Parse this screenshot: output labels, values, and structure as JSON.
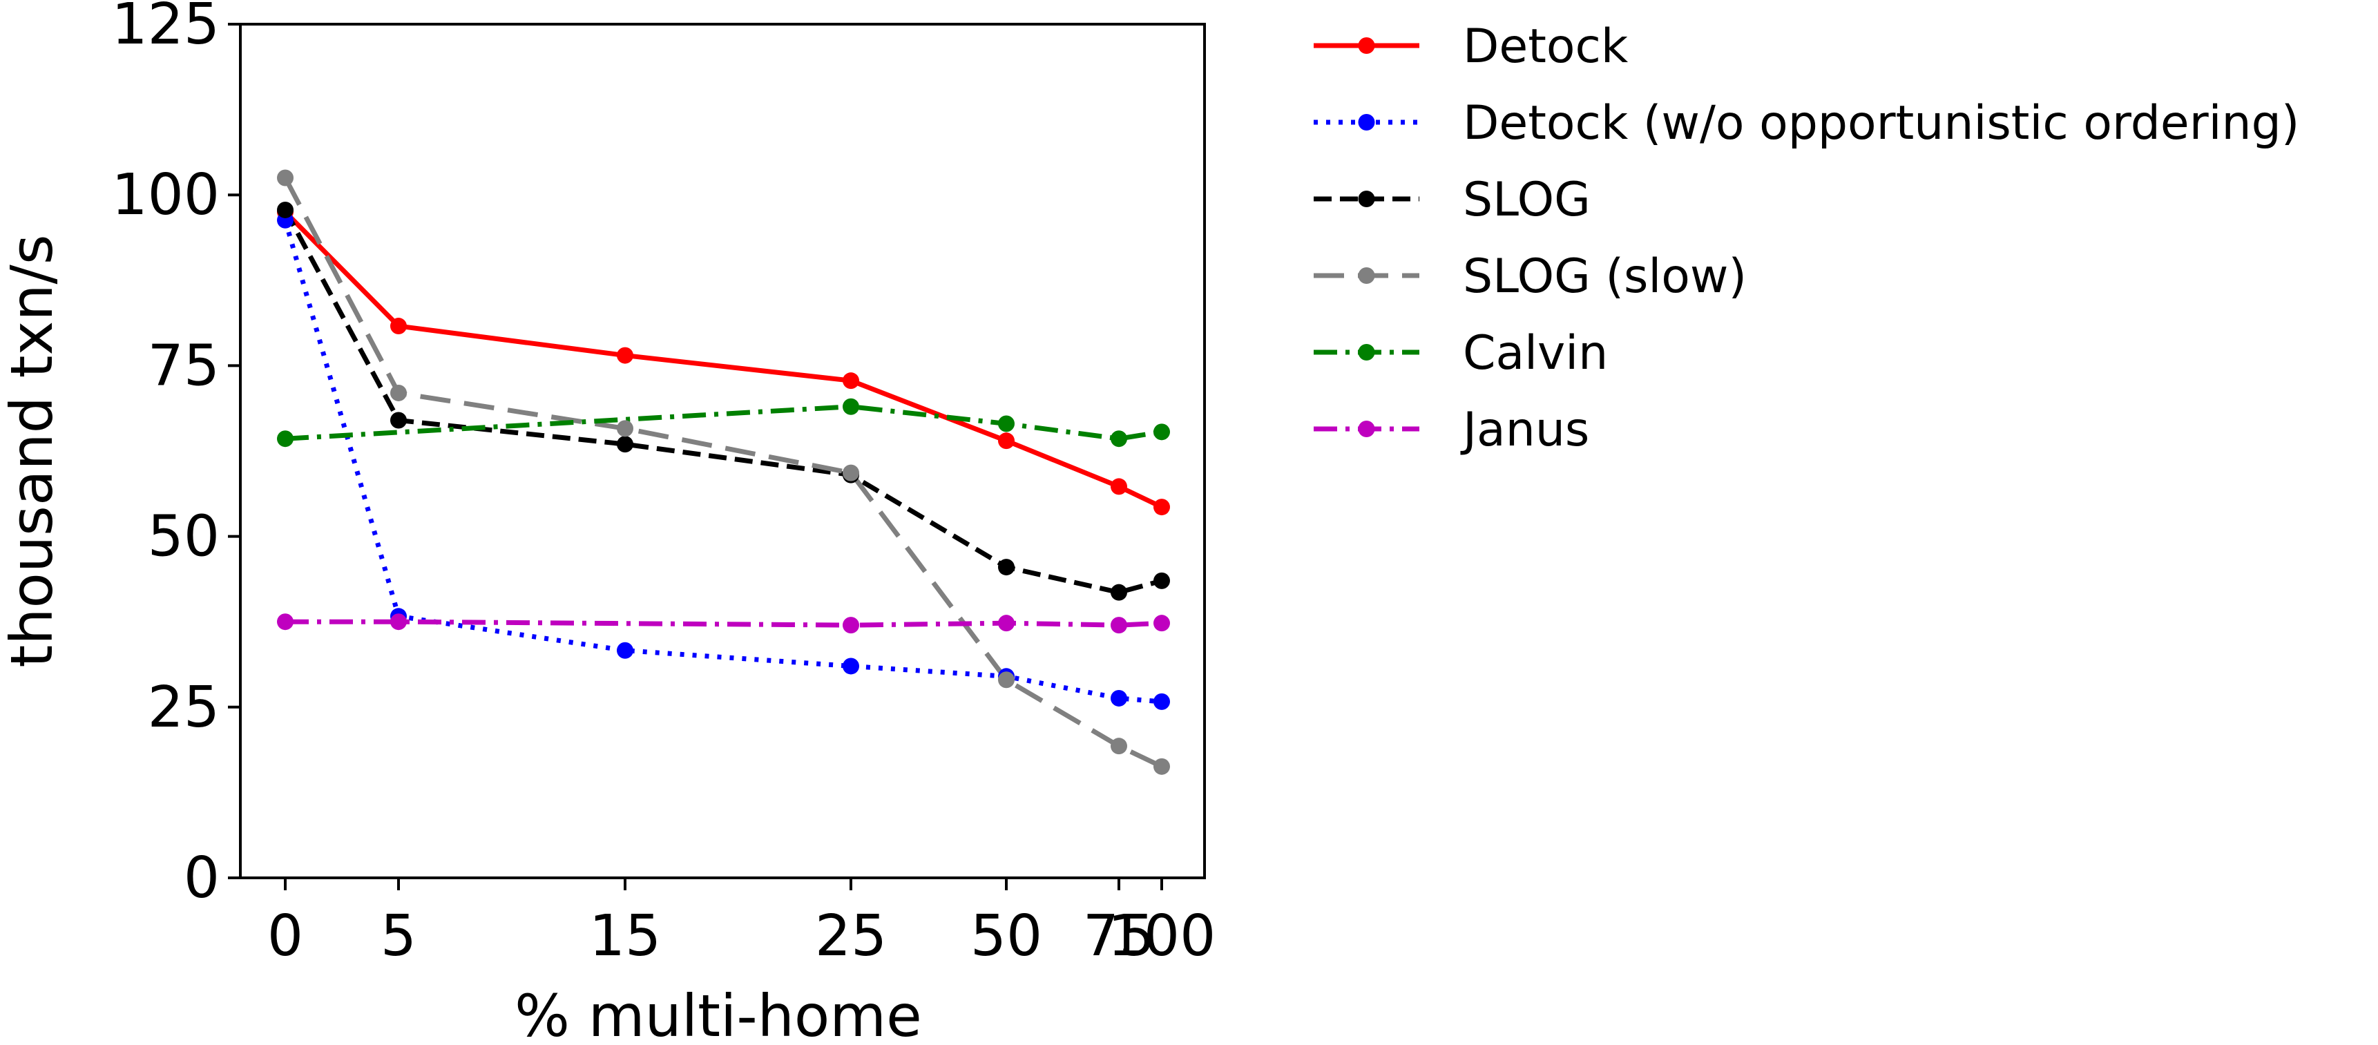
{
  "chart_data": {
    "type": "line",
    "title": "",
    "xlabel": "% multi-home",
    "ylabel": "thousand txn/s",
    "x_categories": [
      "0",
      "5",
      "15",
      "25",
      "50",
      "75",
      "100"
    ],
    "yticks": [
      "0",
      "25",
      "50",
      "75",
      "100",
      "125"
    ],
    "ylim": [
      0,
      125
    ],
    "grid": false,
    "legend_position": "outside-right",
    "series": [
      {
        "name": "Detock",
        "color": "#ff0000",
        "style": "solid",
        "values": [
          97.5,
          80.8,
          76.5,
          72.8,
          64.0,
          57.3,
          54.3
        ]
      },
      {
        "name": "Detock (w/o opportunistic ordering)",
        "color": "#0000ff",
        "style": "dotted",
        "values": [
          96.3,
          38.3,
          33.3,
          31.0,
          29.5,
          26.3,
          25.8
        ]
      },
      {
        "name": "SLOG",
        "color": "#000000",
        "style": "dashed",
        "values": [
          97.8,
          67.0,
          63.5,
          59.0,
          45.5,
          41.8,
          43.5
        ]
      },
      {
        "name": "SLOG (slow)",
        "color": "#808080",
        "style": "longdash",
        "values": [
          102.5,
          71.0,
          65.8,
          59.3,
          29.0,
          19.3,
          16.3
        ]
      },
      {
        "name": "Calvin",
        "color": "#008000",
        "style": "dashdot",
        "values": [
          64.3,
          null,
          null,
          69.0,
          66.5,
          64.3,
          65.3
        ]
      },
      {
        "name": "Janus",
        "color": "#bf00bf",
        "style": "dashdot",
        "values": [
          37.5,
          37.5,
          null,
          37.0,
          37.3,
          37.0,
          37.3
        ]
      }
    ]
  }
}
